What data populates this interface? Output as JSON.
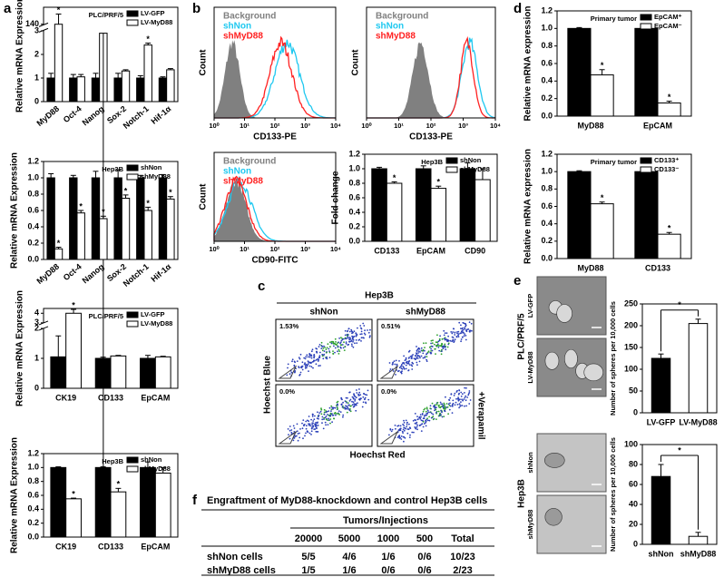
{
  "chart_data": [
    {
      "type": "bar",
      "title": "PLC/PRF/5",
      "y_label": "Relative mRNA Expression",
      "rotated_categories": true,
      "categories": [
        "MyD88",
        "Oct-4",
        "Nanog",
        "Sox-2",
        "Notch-1",
        "Hif-1α"
      ],
      "series": [
        {
          "name": "LV-GFP",
          "color": "#000000",
          "values": [
            1,
            1,
            1,
            1,
            1,
            1
          ],
          "errors": [
            0.2,
            0.15,
            0.2,
            0.2,
            0.1,
            0.05
          ]
        },
        {
          "name": "LV-MyD88",
          "color": "#ffffff",
          "values": [
            140,
            1.05,
            2.9,
            1.3,
            2.4,
            1.35
          ],
          "errors": [
            3,
            0.1,
            0.2,
            0.05,
            0.08,
            0.05
          ],
          "significance": [
            "*",
            null,
            "*",
            null,
            "*",
            null
          ]
        }
      ],
      "ylim": [
        0,
        145
      ],
      "yticks": [
        0,
        1,
        2,
        3,
        140
      ],
      "axis_break": [
        3,
        140
      ]
    },
    {
      "type": "bar",
      "title": "Hep3B",
      "y_label": "Relative mRNA Expression",
      "rotated_categories": true,
      "categories": [
        "MyD88",
        "Oct-4",
        "Nanog",
        "Sox-2",
        "Notch-1",
        "Hif-1α"
      ],
      "series": [
        {
          "name": "shNon",
          "color": "#000000",
          "values": [
            1,
            1,
            1,
            1,
            1,
            1
          ],
          "errors": [
            0.05,
            0.03,
            0.08,
            0.1,
            0.03,
            0.04
          ]
        },
        {
          "name": "shMyD88",
          "color": "#ffffff",
          "values": [
            0.13,
            0.57,
            0.5,
            0.75,
            0.6,
            0.74
          ],
          "errors": [
            0.02,
            0.03,
            0.03,
            0.04,
            0.04,
            0.03
          ],
          "significance": [
            "*",
            "*",
            "*",
            "*",
            "*",
            "*"
          ]
        }
      ],
      "ylim": [
        0,
        1.2
      ],
      "yticks": [
        {
          "value": 0,
          "label": "0.0"
        },
        0.2,
        0.4,
        0.6,
        0.8,
        {
          "value": 1,
          "label": "1.0"
        },
        1.2
      ]
    },
    {
      "type": "bar",
      "title": "PLC/PRF/5",
      "y_label": "Relative mRNA Expression",
      "categories": [
        "CK19",
        "CD133",
        "EpCAM"
      ],
      "series": [
        {
          "name": "LV-GFP",
          "color": "#000000",
          "values": [
            1.05,
            1.0,
            1.0
          ],
          "errors": [
            0.7,
            0.04,
            0.1
          ]
        },
        {
          "name": "LV-MyD88",
          "color": "#ffffff",
          "values": [
            4.0,
            1.08,
            1.05
          ],
          "errors": [
            0.4,
            0.02,
            0.02
          ],
          "significance": [
            "*",
            null,
            null
          ]
        }
      ],
      "ylim": [
        0,
        4.5
      ],
      "yticks": [
        0,
        1,
        2,
        3,
        4
      ],
      "axis_break": [
        2,
        3
      ]
    },
    {
      "type": "bar",
      "title": "Hep3B",
      "y_label": "Relative mRNA Expression",
      "categories": [
        "CK19",
        "CD133",
        "EpCAM"
      ],
      "series": [
        {
          "name": "shNon",
          "color": "#000000",
          "values": [
            1,
            1,
            1
          ],
          "errors": [
            0.01,
            0.01,
            0.08
          ]
        },
        {
          "name": "shMyD88",
          "color": "#ffffff",
          "values": [
            0.55,
            0.65,
            0.92
          ],
          "errors": [
            0.01,
            0.05,
            0.08
          ],
          "significance": [
            "*",
            "*",
            null
          ]
        }
      ],
      "ylim": [
        0,
        1.2
      ],
      "yticks": [
        {
          "value": 0,
          "label": "0.0"
        },
        0.2,
        0.4,
        0.6,
        0.8,
        {
          "value": 1,
          "label": "1.0"
        },
        1.2
      ]
    },
    {
      "type": "bar",
      "title": "Hep3B",
      "y_label": "Fold change",
      "categories": [
        "CD133",
        "EpCAM",
        "CD90"
      ],
      "series": [
        {
          "name": "shNon",
          "color": "#000000",
          "values": [
            1.0,
            1.0,
            1.0
          ],
          "errors": [
            0.02,
            0.04,
            0.08
          ]
        },
        {
          "name": "shMyD88",
          "color": "#ffffff",
          "values": [
            0.8,
            0.73,
            0.85
          ],
          "errors": [
            0.02,
            0.03,
            0.15
          ],
          "significance": [
            "*",
            "*",
            null
          ]
        }
      ],
      "ylim": [
        0,
        1.2
      ],
      "yticks": [
        {
          "value": 0,
          "label": "0.0"
        },
        0.2,
        0.4,
        0.6,
        0.8,
        {
          "value": 1,
          "label": "1.0"
        },
        1.2
      ]
    },
    {
      "type": "bar",
      "title": "Primary tumor",
      "y_label": "Relative mRNA expression",
      "categories": [
        "MyD88",
        "EpCAM"
      ],
      "series": [
        {
          "name": "EpCAM⁺",
          "color": "#000000",
          "values": [
            1.0,
            1.0
          ],
          "errors": [
            0.01,
            0.03
          ]
        },
        {
          "name": "EpCAM⁻",
          "color": "#ffffff",
          "values": [
            0.47,
            0.15
          ],
          "errors": [
            0.06,
            0.02
          ],
          "significance": [
            "*",
            "*"
          ]
        }
      ],
      "ylim": [
        0,
        1.2
      ],
      "yticks": [
        {
          "value": 0,
          "label": "0.0"
        },
        0.2,
        0.4,
        0.6,
        0.8,
        {
          "value": 1,
          "label": "1.0"
        },
        1.2
      ]
    },
    {
      "type": "bar",
      "title": "Primary tumor",
      "y_label": "Relative mRNA expression",
      "categories": [
        "MyD88",
        "CD133"
      ],
      "series": [
        {
          "name": "CD133⁺",
          "color": "#000000",
          "values": [
            1.0,
            1.0
          ],
          "errors": [
            0.01,
            0.01
          ]
        },
        {
          "name": "CD133⁻",
          "color": "#ffffff",
          "values": [
            0.63,
            0.28
          ],
          "errors": [
            0.02,
            0.02
          ],
          "significance": [
            "*",
            "*"
          ]
        }
      ],
      "ylim": [
        0,
        1.2
      ],
      "yticks": [
        {
          "value": 0,
          "label": "0.0"
        },
        0.2,
        0.4,
        0.6,
        0.8,
        {
          "value": 1,
          "label": "1.0"
        },
        1.2
      ]
    },
    {
      "type": "bar",
      "y_label": "Number of spheres per 10,000 cells",
      "annotation": "*",
      "categories": [
        "LV-GFP",
        "LV-MyD88"
      ],
      "series": [
        {
          "colors": [
            "#000000",
            "#ffffff"
          ],
          "values": [
            125,
            205
          ],
          "errors": [
            10,
            10
          ]
        }
      ],
      "ylim": [
        0,
        250
      ],
      "yticks": [
        0,
        50,
        100,
        150,
        200,
        250
      ]
    },
    {
      "type": "bar",
      "y_label": "Number of spheres per 10,000 cells",
      "annotation": "*",
      "categories": [
        "shNon",
        "shMyD88"
      ],
      "series": [
        {
          "colors": [
            "#000000",
            "#ffffff"
          ],
          "values": [
            68,
            8
          ],
          "errors": [
            12,
            4
          ]
        }
      ],
      "ylim": [
        0,
        100
      ],
      "yticks": [
        0,
        20,
        40,
        60,
        80,
        100
      ]
    }
  ],
  "panel_labels": [
    "a",
    "b",
    "c",
    "d",
    "e",
    "f"
  ],
  "flow_cytometry": [
    {
      "legend": [
        "Background",
        "shNon",
        "shMyD88"
      ],
      "x_label": "CD133-PE",
      "y_label": "Count",
      "x_ticks": [
        "10⁰",
        "10¹",
        "10²",
        "10³",
        "10⁴"
      ]
    },
    {
      "legend": [
        "Background",
        "shNon",
        "shMyD88"
      ],
      "x_label": "CD133-PE",
      "y_label": "Count",
      "x_ticks": [
        "10⁰",
        "10¹",
        "10²",
        "10³",
        "10⁴"
      ]
    },
    {
      "legend": [
        "Background",
        "shNon",
        "shMyD88"
      ],
      "x_label": "CD90-FITC",
      "y_label": "Count",
      "x_ticks": [
        "10⁰",
        "10¹",
        "10²",
        "10³",
        "10⁴"
      ]
    }
  ],
  "side_population": {
    "title": "Hep3B",
    "columns": [
      "shNon",
      "shMyD88"
    ],
    "gates": [
      [
        "1.53%",
        "0.51%"
      ],
      [
        "0.0%",
        "0.0%"
      ]
    ],
    "y_label": "Hoechst Blue",
    "x_label": "Hoechst Red",
    "row_note": "+Verapamil"
  },
  "spheres": [
    {
      "group": "PLC/PRF/5",
      "rows": [
        "LV-GFP",
        "LV-MyD88"
      ]
    },
    {
      "group": "Hep3B",
      "rows": [
        "shNon",
        "shMyD88"
      ]
    }
  ],
  "table": {
    "title": "Engraftment of MyD88-knockdown and control Hep3B cells",
    "header": "Tumors/Injections",
    "columns": [
      "20000",
      "5000",
      "1000",
      "500",
      "Total"
    ],
    "rows": [
      [
        "shNon cells",
        "5/5",
        "4/6",
        "1/6",
        "0/6",
        "10/23"
      ],
      [
        "shMyD88 cells",
        "1/5",
        "1/6",
        "0/6",
        "0/6",
        "2/23"
      ]
    ]
  }
}
